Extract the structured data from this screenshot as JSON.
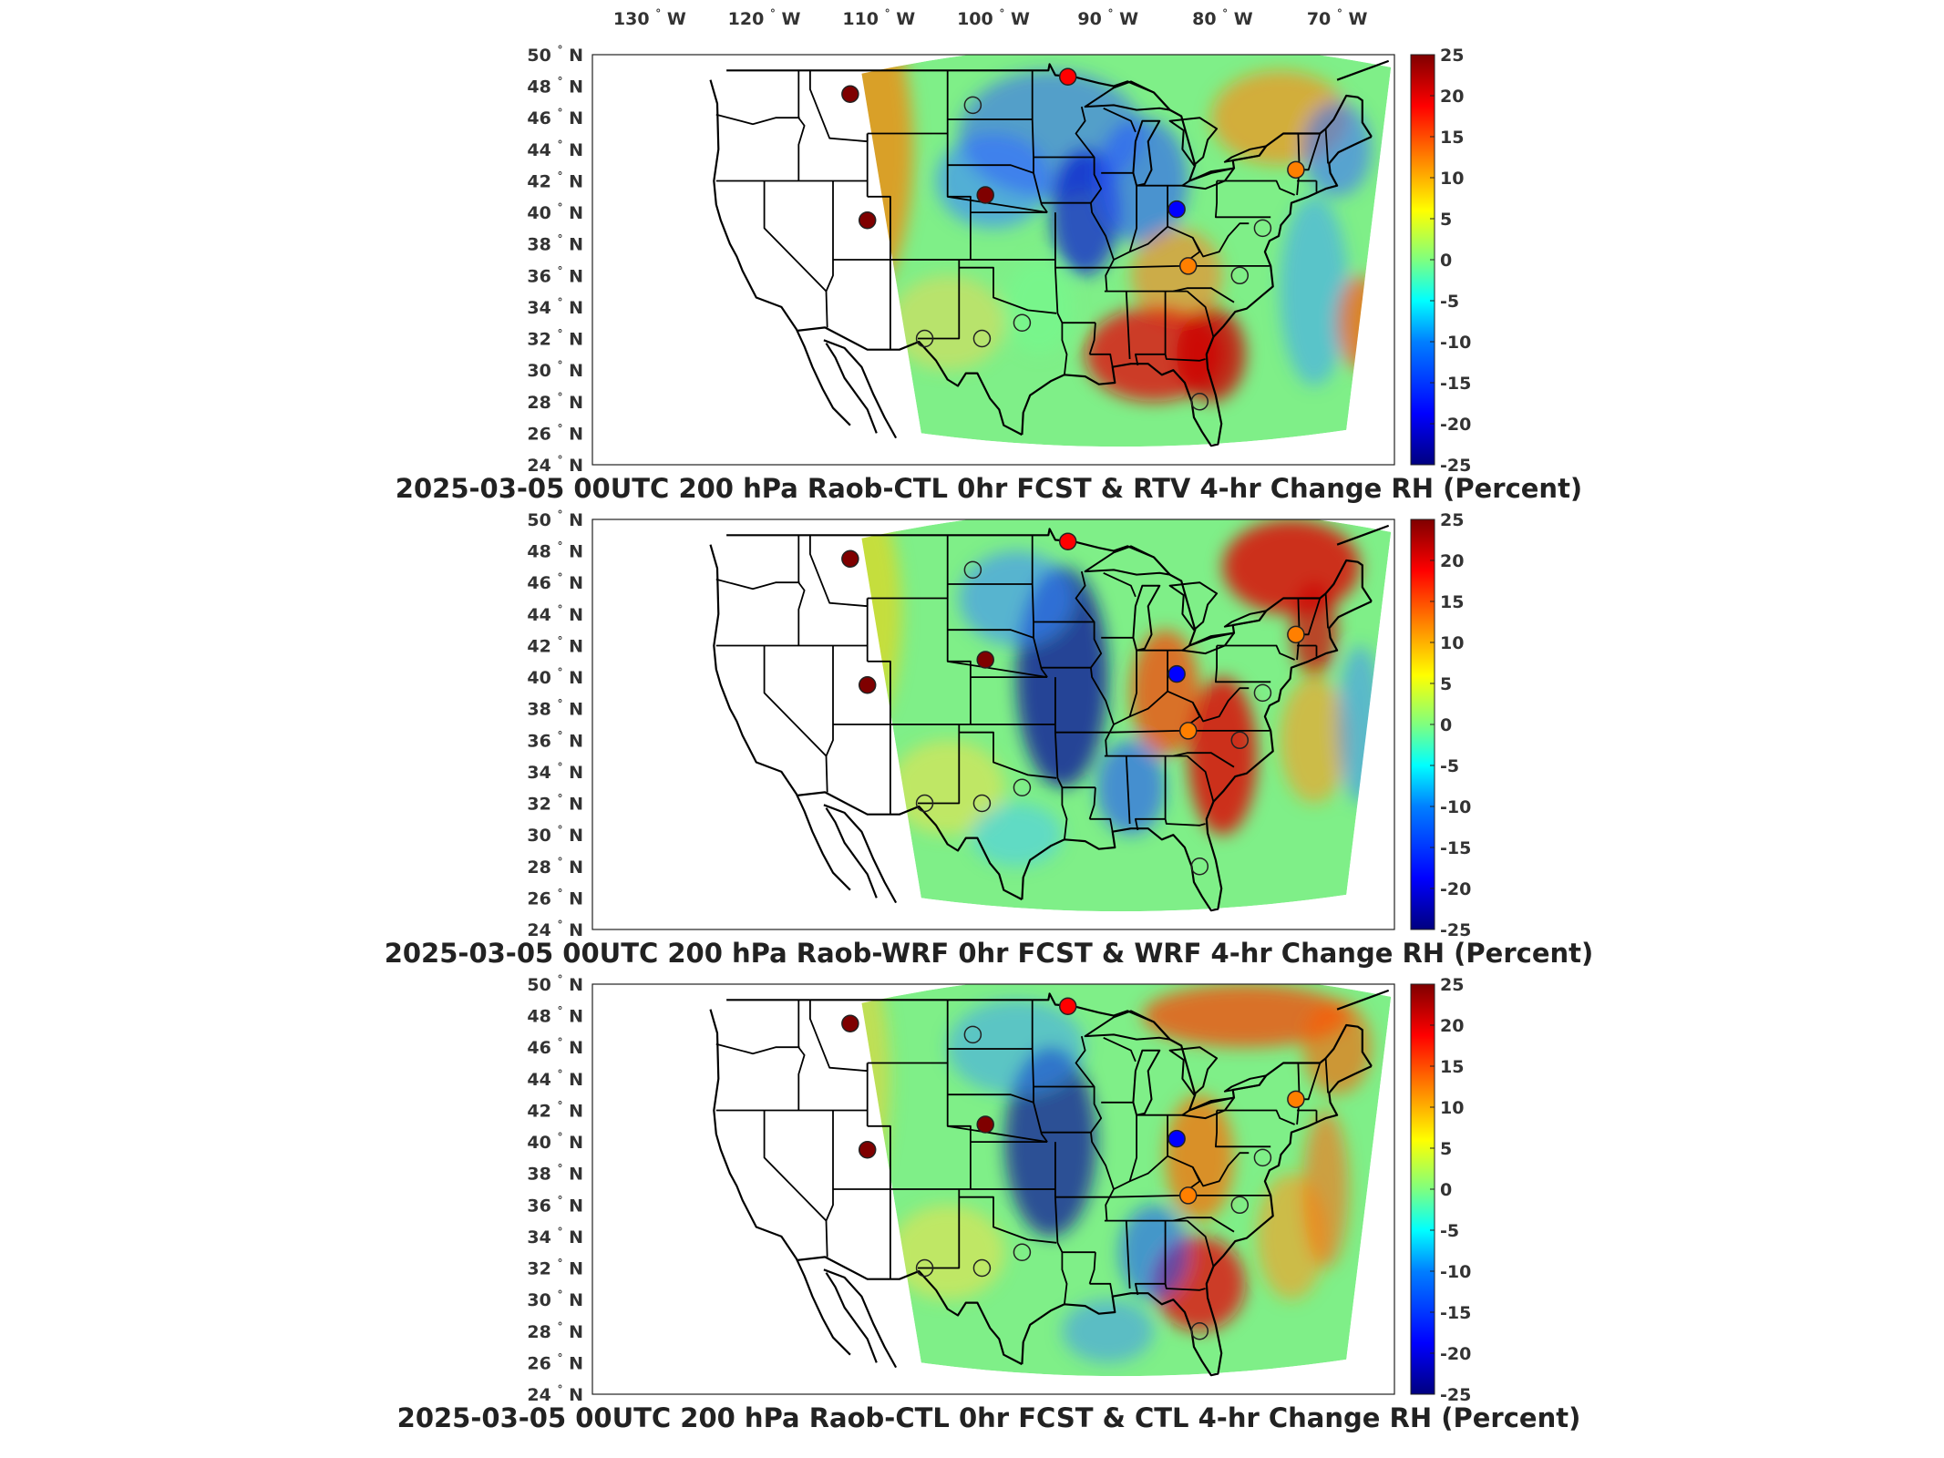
{
  "lon_labels": [
    {
      "deg": "130",
      "hem": "W"
    },
    {
      "deg": "120",
      "hem": "W"
    },
    {
      "deg": "110",
      "hem": "W"
    },
    {
      "deg": "100",
      "hem": "W"
    },
    {
      "deg": "90",
      "hem": "W"
    },
    {
      "deg": "80",
      "hem": "W"
    },
    {
      "deg": "70",
      "hem": "W"
    }
  ],
  "lat_labels": [
    {
      "deg": "50",
      "hem": "N"
    },
    {
      "deg": "48",
      "hem": "N"
    },
    {
      "deg": "46",
      "hem": "N"
    },
    {
      "deg": "44",
      "hem": "N"
    },
    {
      "deg": "42",
      "hem": "N"
    },
    {
      "deg": "40",
      "hem": "N"
    },
    {
      "deg": "38",
      "hem": "N"
    },
    {
      "deg": "36",
      "hem": "N"
    },
    {
      "deg": "34",
      "hem": "N"
    },
    {
      "deg": "32",
      "hem": "N"
    },
    {
      "deg": "30",
      "hem": "N"
    },
    {
      "deg": "28",
      "hem": "N"
    },
    {
      "deg": "26",
      "hem": "N"
    },
    {
      "deg": "24",
      "hem": "N"
    }
  ],
  "colorbar": {
    "ticks": [
      "25",
      "20",
      "15",
      "10",
      "5",
      "0",
      "-5",
      "-10",
      "-15",
      "-20",
      "-25"
    ],
    "colors": [
      "#00007f",
      "#0000ff",
      "#007fff",
      "#00ffff",
      "#7fff7f",
      "#ffff00",
      "#ff7f00",
      "#ff0000",
      "#7f0000"
    ]
  },
  "panels": [
    {
      "title": "2025-03-05 00UTC 200 hPa Raob-CTL 0hr FCST & RTV 4-hr Change RH (Percent)"
    },
    {
      "title": "2025-03-05 00UTC 200 hPa Raob-WRF 0hr FCST & WRF 4-hr Change RH (Percent)"
    },
    {
      "title": "2025-03-05 00UTC 200 hPa Raob-CTL 0hr FCST & CTL 4-hr Change RH (Percent)"
    }
  ],
  "stations": [
    {
      "lon": -112.5,
      "lat": 47.5,
      "value": 22
    },
    {
      "lon": -93.5,
      "lat": 48.6,
      "value": 18
    },
    {
      "lon": -101.8,
      "lat": 46.8,
      "value": null
    },
    {
      "lon": -100.7,
      "lat": 41.1,
      "value": 24
    },
    {
      "lon": -111.0,
      "lat": 39.5,
      "value": 22
    },
    {
      "lon": -84.0,
      "lat": 40.2,
      "value": -20
    },
    {
      "lon": -73.6,
      "lat": 42.7,
      "value": 12
    },
    {
      "lon": -83.0,
      "lat": 36.6,
      "value": 12
    },
    {
      "lon": -78.5,
      "lat": 36.0,
      "value": null
    },
    {
      "lon": -106.0,
      "lat": 32.0,
      "value": null
    },
    {
      "lon": -101.0,
      "lat": 32.0,
      "value": null
    },
    {
      "lon": -97.5,
      "lat": 33.0,
      "value": null
    },
    {
      "lon": -82.0,
      "lat": 28.0,
      "value": null
    },
    {
      "lon": -76.5,
      "lat": 39.0,
      "value": null
    }
  ]
}
